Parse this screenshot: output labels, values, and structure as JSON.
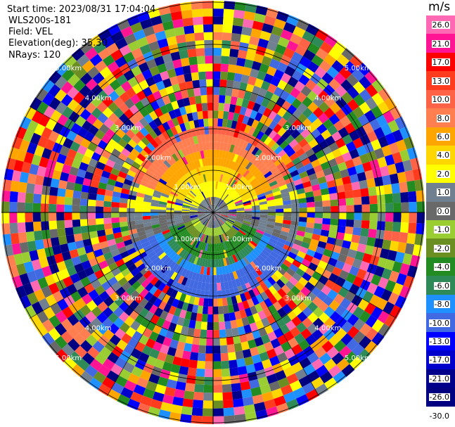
{
  "header": {
    "start_time": "Start time: 2023/08/31 17:04:04",
    "instrument": "WLS200s-181",
    "field": "Field: VEL",
    "elevation": "Elevation(deg): 35.30",
    "nrays": "NRays: 120"
  },
  "colorbar": {
    "unit": "m/s",
    "segments": [
      {
        "color": "#ff69b4",
        "label": "26.0"
      },
      {
        "color": "#ff1493",
        "label": "21.0"
      },
      {
        "color": "#ff0000",
        "label": "17.0"
      },
      {
        "color": "#ff3c1e",
        "label": "13.0"
      },
      {
        "color": "#ff6347",
        "label": "10.0"
      },
      {
        "color": "#ff7f50",
        "label": "8.0"
      },
      {
        "color": "#ffa500",
        "label": "6.0"
      },
      {
        "color": "#ffd700",
        "label": "4.0"
      },
      {
        "color": "#ffff00",
        "label": "2.0"
      },
      {
        "color": "#708090",
        "label": "1.0"
      },
      {
        "color": "#696969",
        "label": "0.0"
      },
      {
        "color": "#9acd32",
        "label": "-1.0"
      },
      {
        "color": "#6b8e23",
        "label": "-2.0"
      },
      {
        "color": "#228b22",
        "label": "-4.0"
      },
      {
        "color": "#2e8b57",
        "label": "-6.0"
      },
      {
        "color": "#1e90ff",
        "label": "-8.0"
      },
      {
        "color": "#4169e1",
        "label": "-10.0"
      },
      {
        "color": "#0000ff",
        "label": "-13.0"
      },
      {
        "color": "#0000cd",
        "label": "-17.0"
      },
      {
        "color": "#00008b",
        "label": "-21.0"
      },
      {
        "color": "#000080",
        "label": "-26.0"
      },
      {
        "color": "#ffffff",
        "label": "-30.0"
      }
    ]
  },
  "range_labels": [
    "1.00km",
    "2.00km",
    "3.00km",
    "4.00km",
    "5.00km"
  ],
  "nrays": 120,
  "ngates": 27
}
